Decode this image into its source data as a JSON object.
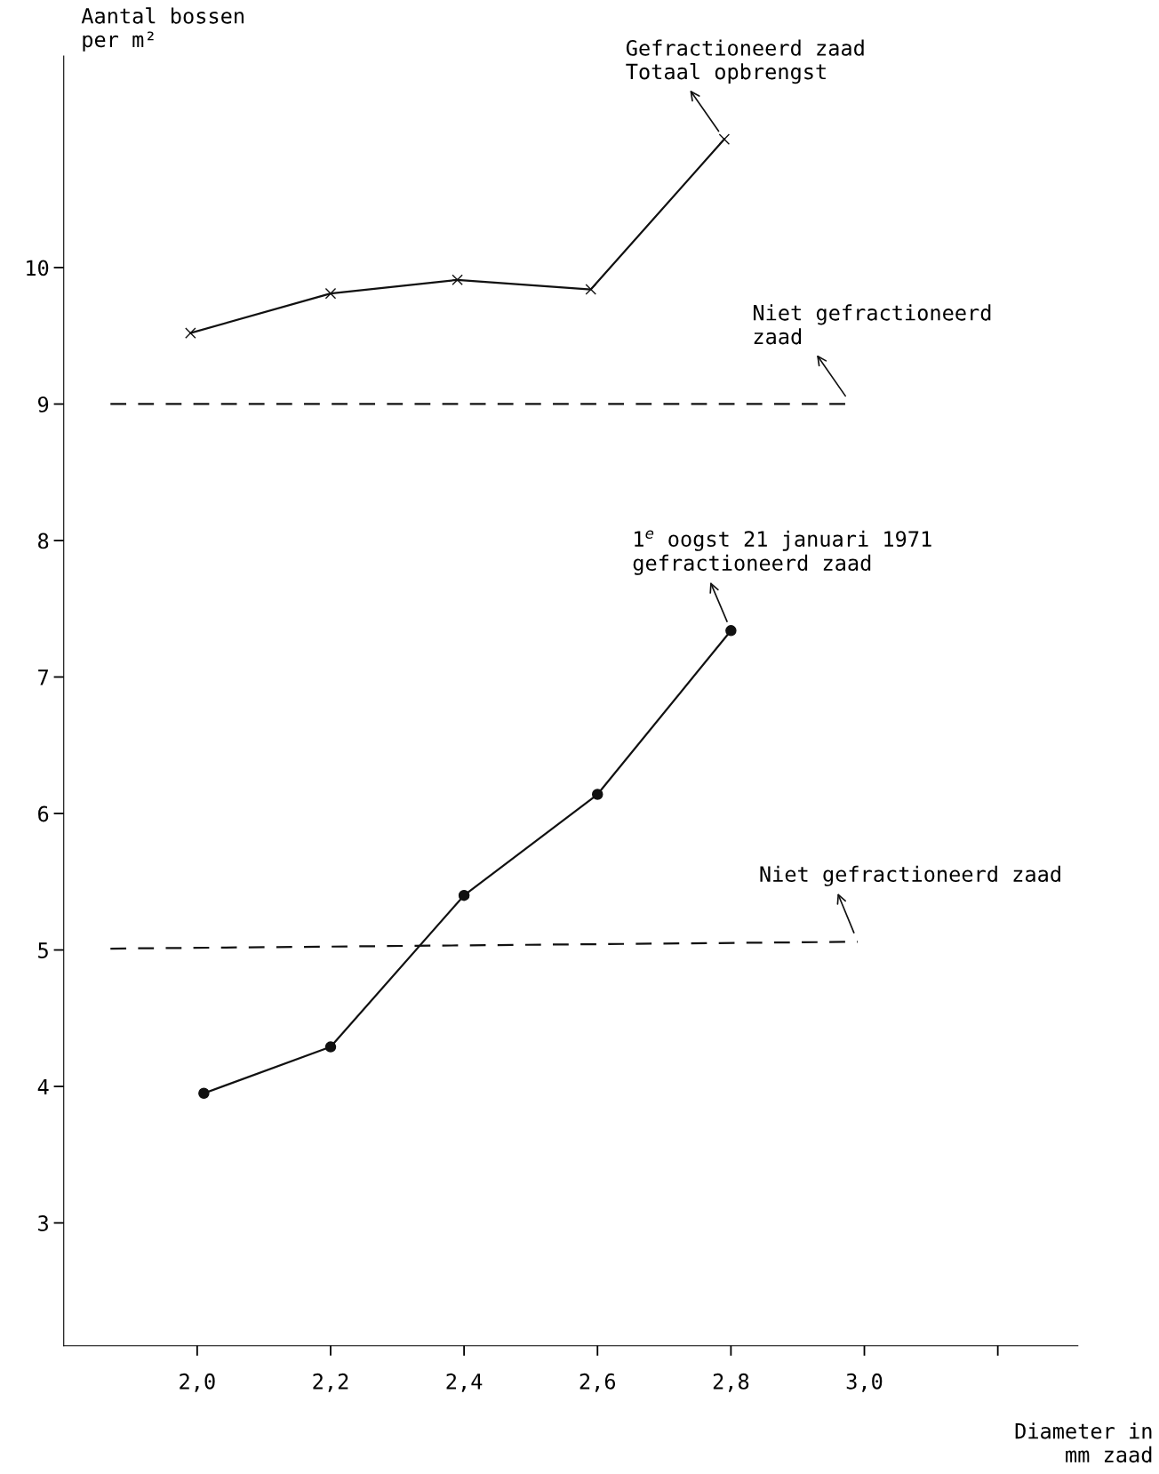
{
  "chart_data": {
    "type": "line",
    "ylabel": "Aantal bossen\nper m²",
    "xlabel": "Diameter in\nmm zaad",
    "xlim": [
      1.8,
      3.32
    ],
    "ylim": [
      2.1,
      11.55
    ],
    "xticks": [
      {
        "value": 2.0,
        "label": "2,0"
      },
      {
        "value": 2.2,
        "label": "2,2"
      },
      {
        "value": 2.4,
        "label": "2,4"
      },
      {
        "value": 2.6,
        "label": "2,6"
      },
      {
        "value": 2.8,
        "label": "2,8"
      },
      {
        "value": 3.0,
        "label": "3,0"
      },
      {
        "value": 3.2,
        "label": null
      }
    ],
    "yticks": [
      3,
      4,
      5,
      6,
      7,
      8,
      9,
      10
    ],
    "grid": false,
    "legend": false,
    "series": [
      {
        "name": "Gefractioneerd zaad\nTotaal opbrengst",
        "color": "#111111",
        "marker": "cross",
        "line_style": "solid",
        "x": [
          1.99,
          2.2,
          2.39,
          2.59,
          2.79
        ],
        "values": [
          9.52,
          9.81,
          9.91,
          9.84,
          10.94
        ]
      },
      {
        "name": "Niet gefractioneerd\nzaad",
        "color": "#111111",
        "marker": "none",
        "line_style": "dashed",
        "x": [
          1.87,
          2.98
        ],
        "values": [
          9.0,
          9.0
        ]
      },
      {
        "name": "1$^{e}$ oogst 21 januari 1971\ngefractioneerd zaad",
        "color": "#111111",
        "marker": "circle",
        "line_style": "solid",
        "x": [
          2.01,
          2.2,
          2.4,
          2.6,
          2.8
        ],
        "values": [
          3.95,
          4.29,
          5.4,
          6.14,
          7.34
        ]
      },
      {
        "name": "Niet gefractioneerd zaad",
        "color": "#111111",
        "marker": "none",
        "line_style": "dashed",
        "x": [
          1.87,
          2.99
        ],
        "values": [
          5.01,
          5.06
        ]
      }
    ]
  }
}
